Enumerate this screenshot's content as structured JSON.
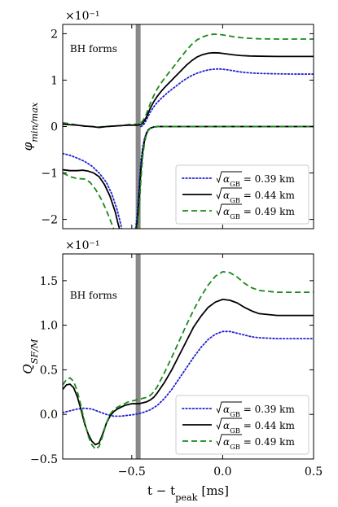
{
  "chart_data": [
    {
      "type": "line",
      "xlabel": "",
      "ylabel": "φ_min/max",
      "multiplier": "×10⁻¹",
      "xlim": [
        -0.88,
        0.5
      ],
      "ylim": [
        -2.2,
        2.2
      ],
      "yticks": [
        {
          "v": -2,
          "label": "−2"
        },
        {
          "v": -1,
          "label": "−1"
        },
        {
          "v": 0,
          "label": "0"
        },
        {
          "v": 1,
          "label": "1"
        },
        {
          "v": 2,
          "label": "2"
        }
      ],
      "xticks": [
        {
          "v": -0.5,
          "label": ""
        },
        {
          "v": 0,
          "label": ""
        },
        {
          "v": 0.5,
          "label": ""
        }
      ],
      "vline": {
        "x": -0.465,
        "color": "#888888"
      },
      "annotation": {
        "text": "BH forms",
        "x": -0.84,
        "y": 1.6
      },
      "legend": "lower-right",
      "series": [
        {
          "name": "√α_GB = 0.39 km",
          "color": "#1f1fd4",
          "style": "dotted",
          "x": [
            -0.45,
            -0.44,
            -0.43,
            -0.42,
            -0.41,
            -0.4,
            -0.38,
            -0.36,
            -0.34,
            -0.32,
            -0.3,
            -0.28,
            -0.26,
            -0.24,
            -0.22,
            -0.2,
            -0.17,
            -0.14,
            -0.11,
            -0.08,
            -0.05,
            -0.02,
            0.0,
            0.03,
            0.06,
            0.1,
            0.15,
            0.2,
            0.3,
            0.4,
            0.5
          ],
          "y": [
            0.0,
            0.02,
            0.07,
            0.14,
            0.22,
            0.3,
            0.42,
            0.52,
            0.6,
            0.67,
            0.74,
            0.8,
            0.86,
            0.92,
            0.98,
            1.03,
            1.1,
            1.15,
            1.19,
            1.22,
            1.235,
            1.24,
            1.235,
            1.22,
            1.2,
            1.175,
            1.155,
            1.145,
            1.135,
            1.13,
            1.13
          ]
        },
        {
          "name": "√α_GB = 0.39 km",
          "color": "#1f1fd4",
          "style": "dotted",
          "x": [
            -0.88,
            -0.84,
            -0.8,
            -0.76,
            -0.72,
            -0.68,
            -0.64,
            -0.61,
            -0.58,
            -0.555,
            -0.54,
            -0.52,
            -0.5,
            -0.485,
            -0.47,
            -0.462,
            -0.455,
            -0.45,
            -0.44,
            -0.43,
            -0.42,
            -0.41,
            -0.4,
            -0.38,
            -0.35,
            -0.3,
            -0.2,
            0.0,
            0.2,
            0.5
          ],
          "y": [
            -0.58,
            -0.62,
            -0.68,
            -0.75,
            -0.85,
            -1.0,
            -1.2,
            -1.45,
            -1.8,
            -2.2,
            -2.4,
            -2.6,
            -2.5,
            -2.4,
            -1.9,
            -1.4,
            -1.0,
            -0.75,
            -0.45,
            -0.26,
            -0.14,
            -0.07,
            -0.035,
            -0.01,
            0.0,
            0.0,
            0.0,
            0.0,
            0.0,
            0.0
          ]
        },
        {
          "name": "√α_GB = 0.44 km",
          "color": "#000000",
          "style": "solid",
          "x": [
            -0.45,
            -0.44,
            -0.43,
            -0.42,
            -0.41,
            -0.4,
            -0.38,
            -0.36,
            -0.34,
            -0.32,
            -0.3,
            -0.28,
            -0.26,
            -0.24,
            -0.22,
            -0.2,
            -0.17,
            -0.14,
            -0.11,
            -0.08,
            -0.05,
            -0.02,
            0.0,
            0.03,
            0.06,
            0.1,
            0.15,
            0.2,
            0.3,
            0.4,
            0.5
          ],
          "y": [
            0.04,
            0.07,
            0.13,
            0.2,
            0.29,
            0.38,
            0.53,
            0.65,
            0.75,
            0.84,
            0.92,
            1.0,
            1.08,
            1.16,
            1.24,
            1.32,
            1.42,
            1.5,
            1.55,
            1.58,
            1.59,
            1.585,
            1.575,
            1.56,
            1.545,
            1.53,
            1.52,
            1.515,
            1.51,
            1.51,
            1.51
          ]
        },
        {
          "name": "√α_GB = 0.44 km",
          "color": "#000000",
          "style": "solid",
          "x": [
            -0.88,
            -0.84,
            -0.8,
            -0.77,
            -0.74,
            -0.71,
            -0.68,
            -0.65,
            -0.62,
            -0.59,
            -0.575,
            -0.56,
            -0.54,
            -0.52,
            -0.5,
            -0.49,
            -0.475,
            -0.466,
            -0.46,
            -0.455,
            -0.45,
            -0.44,
            -0.43,
            -0.42,
            -0.41,
            -0.4,
            -0.38,
            -0.36,
            -0.3,
            -0.2,
            0.0,
            0.2,
            0.5
          ],
          "y": [
            -0.93,
            -0.95,
            -0.95,
            -0.94,
            -0.96,
            -1.0,
            -1.08,
            -1.25,
            -1.5,
            -1.85,
            -2.1,
            -2.3,
            -2.5,
            -2.6,
            -2.55,
            -2.45,
            -2.25,
            -1.9,
            -1.55,
            -1.25,
            -0.95,
            -0.55,
            -0.3,
            -0.16,
            -0.08,
            -0.04,
            -0.01,
            0.0,
            0.0,
            0.0,
            0.0,
            0.0,
            0.0
          ]
        },
        {
          "name": "√α_GB = 0.49 km",
          "color": "#1a8a1a",
          "style": "dashed",
          "x": [
            -0.45,
            -0.44,
            -0.43,
            -0.42,
            -0.41,
            -0.4,
            -0.38,
            -0.36,
            -0.34,
            -0.32,
            -0.3,
            -0.28,
            -0.26,
            -0.24,
            -0.22,
            -0.2,
            -0.17,
            -0.14,
            -0.11,
            -0.08,
            -0.05,
            -0.02,
            0.0,
            0.03,
            0.06,
            0.1,
            0.15,
            0.2,
            0.3,
            0.4,
            0.5
          ],
          "y": [
            0.08,
            0.12,
            0.19,
            0.27,
            0.37,
            0.48,
            0.66,
            0.81,
            0.93,
            1.04,
            1.14,
            1.24,
            1.34,
            1.44,
            1.54,
            1.64,
            1.77,
            1.87,
            1.93,
            1.97,
            1.99,
            1.985,
            1.975,
            1.955,
            1.935,
            1.915,
            1.9,
            1.89,
            1.885,
            1.885,
            1.885
          ]
        },
        {
          "name": "√α_GB = 0.49 km",
          "color": "#1a8a1a",
          "style": "dashed",
          "x": [
            -0.88,
            -0.84,
            -0.8,
            -0.76,
            -0.73,
            -0.7,
            -0.67,
            -0.64,
            -0.61,
            -0.6,
            -0.58,
            -0.56,
            -0.54,
            -0.5,
            -0.48,
            -0.47,
            -0.46,
            -0.455,
            -0.45,
            -0.44,
            -0.43,
            -0.42,
            -0.41,
            -0.4,
            -0.38,
            -0.35,
            -0.3,
            -0.2,
            0.0,
            0.2,
            0.5
          ],
          "y": [
            -1.0,
            -1.08,
            -1.12,
            -1.13,
            -1.2,
            -1.35,
            -1.55,
            -1.8,
            -2.1,
            -2.2,
            -2.4,
            -2.6,
            -2.7,
            -2.6,
            -2.45,
            -2.2,
            -1.8,
            -1.5,
            -1.15,
            -0.65,
            -0.35,
            -0.18,
            -0.09,
            -0.045,
            -0.012,
            0.0,
            0.0,
            0.0,
            0.0,
            0.0,
            0.0
          ]
        },
        {
          "name": "√α_GB = 0.49 km",
          "color": "#1a8a1a",
          "style": "dashed",
          "x": [
            -0.88,
            -0.84,
            -0.8,
            -0.76,
            -0.72,
            -0.68,
            -0.64,
            -0.6,
            -0.56,
            -0.52,
            -0.49,
            -0.47,
            -0.46,
            -0.45
          ],
          "y": [
            0.08,
            0.06,
            0.03,
            0.01,
            0.0,
            -0.01,
            0.0,
            0.01,
            0.02,
            0.04,
            0.05,
            0.05,
            0.06,
            0.08
          ]
        },
        {
          "name": "√α_GB = 0.44 km",
          "color": "#000000",
          "style": "solid",
          "x": [
            -0.88,
            -0.84,
            -0.8,
            -0.76,
            -0.72,
            -0.68,
            -0.64,
            -0.6,
            -0.56,
            -0.52,
            -0.49,
            -0.47,
            -0.46,
            -0.45
          ],
          "y": [
            0.05,
            0.04,
            0.03,
            0.01,
            0.0,
            -0.02,
            0.0,
            0.01,
            0.02,
            0.03,
            0.03,
            0.03,
            0.035,
            0.04
          ]
        }
      ]
    },
    {
      "type": "line",
      "xlabel": "t − t_peak [ms]",
      "ylabel": "Q_SF/M",
      "multiplier": "×10⁻¹",
      "xlim": [
        -0.88,
        0.5
      ],
      "ylim": [
        -0.5,
        1.8
      ],
      "yticks": [
        {
          "v": -0.5,
          "label": "−0.5"
        },
        {
          "v": 0,
          "label": "0.0"
        },
        {
          "v": 0.5,
          "label": "0.5"
        },
        {
          "v": 1.0,
          "label": "1.0"
        },
        {
          "v": 1.5,
          "label": "1.5"
        }
      ],
      "xticks": [
        {
          "v": -0.5,
          "label": "−0.5"
        },
        {
          "v": 0,
          "label": "0.0"
        },
        {
          "v": 0.5,
          "label": "0.5"
        }
      ],
      "vline": {
        "x": -0.465,
        "color": "#888888"
      },
      "annotation": {
        "text": "BH forms",
        "x": -0.84,
        "y": 1.3
      },
      "legend": "lower-right",
      "series": [
        {
          "name": "√α_GB = 0.39 km",
          "color": "#1f1fd4",
          "style": "dotted",
          "x": [
            -0.88,
            -0.84,
            -0.8,
            -0.76,
            -0.72,
            -0.68,
            -0.64,
            -0.6,
            -0.56,
            -0.52,
            -0.48,
            -0.44,
            -0.4,
            -0.36,
            -0.32,
            -0.28,
            -0.24,
            -0.2,
            -0.16,
            -0.12,
            -0.08,
            -0.04,
            0.0,
            0.04,
            0.08,
            0.12,
            0.16,
            0.2,
            0.3,
            0.4,
            0.5
          ],
          "y": [
            0.02,
            0.04,
            0.06,
            0.07,
            0.06,
            0.03,
            0.0,
            -0.02,
            -0.02,
            -0.01,
            0.0,
            0.02,
            0.05,
            0.1,
            0.18,
            0.28,
            0.4,
            0.52,
            0.64,
            0.75,
            0.84,
            0.9,
            0.93,
            0.93,
            0.91,
            0.89,
            0.87,
            0.86,
            0.85,
            0.85,
            0.85
          ]
        },
        {
          "name": "√α_GB = 0.44 km",
          "color": "#000000",
          "style": "solid",
          "x": [
            -0.88,
            -0.86,
            -0.84,
            -0.82,
            -0.8,
            -0.78,
            -0.76,
            -0.74,
            -0.72,
            -0.7,
            -0.68,
            -0.66,
            -0.64,
            -0.62,
            -0.6,
            -0.58,
            -0.56,
            -0.54,
            -0.52,
            -0.5,
            -0.48,
            -0.46,
            -0.44,
            -0.42,
            -0.4,
            -0.38,
            -0.36,
            -0.32,
            -0.28,
            -0.24,
            -0.2,
            -0.16,
            -0.12,
            -0.08,
            -0.04,
            0.0,
            0.04,
            0.08,
            0.12,
            0.16,
            0.2,
            0.3,
            0.4,
            0.5
          ],
          "y": [
            0.28,
            0.33,
            0.34,
            0.3,
            0.2,
            0.06,
            -0.1,
            -0.22,
            -0.3,
            -0.34,
            -0.32,
            -0.22,
            -0.1,
            -0.02,
            0.03,
            0.06,
            0.08,
            0.1,
            0.11,
            0.12,
            0.12,
            0.12,
            0.13,
            0.14,
            0.16,
            0.19,
            0.24,
            0.36,
            0.5,
            0.66,
            0.82,
            0.98,
            1.1,
            1.2,
            1.26,
            1.29,
            1.28,
            1.25,
            1.2,
            1.16,
            1.13,
            1.11,
            1.11,
            1.11
          ]
        },
        {
          "name": "√α_GB = 0.49 km",
          "color": "#1a8a1a",
          "style": "dashed",
          "x": [
            -0.88,
            -0.86,
            -0.84,
            -0.82,
            -0.8,
            -0.78,
            -0.76,
            -0.74,
            -0.72,
            -0.7,
            -0.68,
            -0.66,
            -0.64,
            -0.62,
            -0.6,
            -0.58,
            -0.56,
            -0.54,
            -0.52,
            -0.5,
            -0.48,
            -0.46,
            -0.44,
            -0.42,
            -0.4,
            -0.38,
            -0.36,
            -0.32,
            -0.28,
            -0.24,
            -0.2,
            -0.16,
            -0.12,
            -0.08,
            -0.04,
            0.0,
            0.04,
            0.08,
            0.12,
            0.16,
            0.2,
            0.3,
            0.4,
            0.5
          ],
          "y": [
            0.33,
            0.39,
            0.41,
            0.37,
            0.26,
            0.1,
            -0.08,
            -0.24,
            -0.34,
            -0.39,
            -0.36,
            -0.24,
            -0.1,
            0.0,
            0.05,
            0.08,
            0.1,
            0.12,
            0.14,
            0.15,
            0.16,
            0.17,
            0.18,
            0.19,
            0.21,
            0.25,
            0.31,
            0.47,
            0.64,
            0.82,
            1.0,
            1.17,
            1.32,
            1.45,
            1.55,
            1.6,
            1.59,
            1.54,
            1.47,
            1.42,
            1.39,
            1.37,
            1.37,
            1.37
          ]
        }
      ]
    }
  ]
}
